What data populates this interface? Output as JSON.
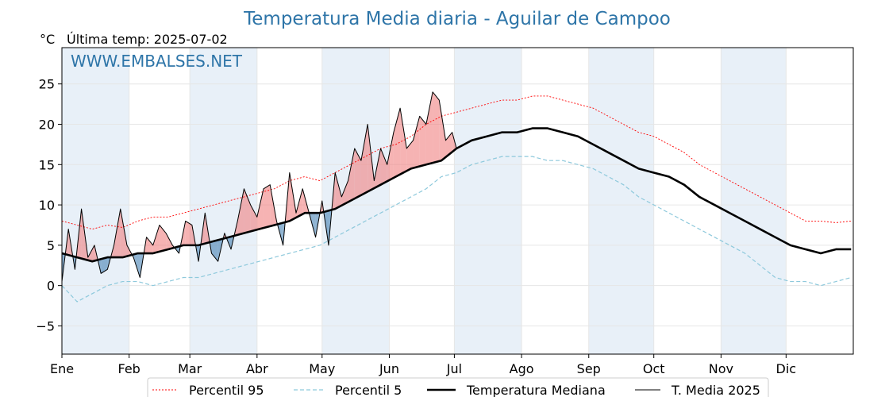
{
  "chart_data": {
    "type": "line",
    "title": "Temperatura Media diaria - Aguilar de Campoo",
    "unit_label": "°C",
    "last_temp_label": "Última temp: 2025-07-02",
    "watermark": "WWW.EMBALSES.NET",
    "ylim": [
      -8.5,
      29.5
    ],
    "yticks": [
      -5,
      0,
      5,
      10,
      15,
      20,
      25
    ],
    "ytick_labels": [
      "−5",
      "0",
      "5",
      "10",
      "15",
      "20",
      "25"
    ],
    "xlim": [
      1,
      366
    ],
    "month_ticks": [
      1,
      32,
      60,
      91,
      121,
      152,
      182,
      213,
      244,
      274,
      305,
      335
    ],
    "month_labels": [
      "Ene",
      "Feb",
      "Mar",
      "Abr",
      "May",
      "Jun",
      "Jul",
      "Ago",
      "Sep",
      "Oct",
      "Nov",
      "Dic"
    ],
    "grid": true,
    "legend_position": "bottom",
    "colors": {
      "p95": "#ff0000",
      "p5": "#8ec9dc",
      "median": "#000000",
      "current": "#000000",
      "above": "#f08080",
      "below": "#4682b4",
      "band": "#e8f0f8",
      "title": "#2e75a8"
    },
    "series": [
      {
        "name": "Percentil 95",
        "style": "dotted",
        "x": [
          1,
          8,
          15,
          22,
          29,
          36,
          43,
          50,
          57,
          64,
          71,
          78,
          85,
          92,
          99,
          106,
          113,
          120,
          127,
          134,
          141,
          148,
          155,
          162,
          169,
          176,
          183,
          190,
          197,
          204,
          211,
          218,
          225,
          232,
          239,
          246,
          253,
          260,
          267,
          274,
          281,
          288,
          295,
          302,
          309,
          316,
          323,
          330,
          337,
          344,
          351,
          358,
          365
        ],
        "values": [
          8,
          7.5,
          7,
          7.5,
          7.2,
          8,
          8.5,
          8.5,
          9,
          9.5,
          10,
          10.5,
          11,
          11.5,
          12,
          13,
          13.5,
          13,
          14,
          15,
          16,
          17,
          17.5,
          18.5,
          20,
          21,
          21.5,
          22,
          22.5,
          23,
          23,
          23.5,
          23.5,
          23,
          22.5,
          22,
          21,
          20,
          19,
          18.5,
          17.5,
          16.5,
          15,
          14,
          13,
          12,
          11,
          10,
          9,
          8,
          8,
          7.8,
          8
        ]
      },
      {
        "name": "Percentil 5",
        "style": "dashed",
        "x": [
          1,
          8,
          15,
          22,
          29,
          36,
          43,
          50,
          57,
          64,
          71,
          78,
          85,
          92,
          99,
          106,
          113,
          120,
          127,
          134,
          141,
          148,
          155,
          162,
          169,
          176,
          183,
          190,
          197,
          204,
          211,
          218,
          225,
          232,
          239,
          246,
          253,
          260,
          267,
          274,
          281,
          288,
          295,
          302,
          309,
          316,
          323,
          330,
          337,
          344,
          351,
          358,
          365
        ],
        "values": [
          0,
          -2,
          -1,
          0,
          0.5,
          0.5,
          0,
          0.5,
          1,
          1,
          1.5,
          2,
          2.5,
          3,
          3.5,
          4,
          4.5,
          5,
          6,
          7,
          8,
          9,
          10,
          11,
          12,
          13.5,
          14,
          15,
          15.5,
          16,
          16,
          16,
          15.5,
          15.5,
          15,
          14.5,
          13.5,
          12.5,
          11,
          10,
          9,
          8,
          7,
          6,
          5,
          4,
          2.5,
          1,
          0.5,
          0.5,
          0,
          0.5,
          1
        ]
      },
      {
        "name": "Temperatura Mediana",
        "style": "solid-thick",
        "x": [
          1,
          8,
          15,
          22,
          29,
          36,
          43,
          50,
          57,
          64,
          71,
          78,
          85,
          92,
          99,
          106,
          113,
          120,
          127,
          134,
          141,
          148,
          155,
          162,
          169,
          176,
          183,
          190,
          197,
          204,
          211,
          218,
          225,
          232,
          239,
          246,
          253,
          260,
          267,
          274,
          281,
          288,
          295,
          302,
          309,
          316,
          323,
          330,
          337,
          344,
          351,
          358,
          365
        ],
        "values": [
          4,
          3.5,
          3,
          3.5,
          3.5,
          4,
          4,
          4.5,
          5,
          5,
          5.5,
          6,
          6.5,
          7,
          7.5,
          8,
          9,
          9,
          9.5,
          10.5,
          11.5,
          12.5,
          13.5,
          14.5,
          15,
          15.5,
          17,
          18,
          18.5,
          19,
          19,
          19.5,
          19.5,
          19,
          18.5,
          17.5,
          16.5,
          15.5,
          14.5,
          14,
          13.5,
          12.5,
          11,
          10,
          9,
          8,
          7,
          6,
          5,
          4.5,
          4,
          4.5,
          4.5
        ]
      },
      {
        "name": "T. Media 2025",
        "style": "solid-thin",
        "x": [
          1,
          4,
          7,
          10,
          13,
          16,
          19,
          22,
          25,
          28,
          31,
          34,
          37,
          40,
          43,
          46,
          49,
          52,
          55,
          58,
          61,
          64,
          67,
          70,
          73,
          76,
          79,
          82,
          85,
          88,
          91,
          94,
          97,
          100,
          103,
          106,
          109,
          112,
          115,
          118,
          121,
          124,
          127,
          130,
          133,
          136,
          139,
          142,
          145,
          148,
          151,
          154,
          157,
          160,
          163,
          166,
          169,
          172,
          175,
          178,
          181,
          183
        ],
        "values": [
          0.5,
          7,
          2,
          9.5,
          3.5,
          5,
          1.5,
          2,
          5,
          9.5,
          5,
          3.5,
          1,
          6,
          5,
          7.5,
          6.5,
          5,
          4,
          8,
          7.5,
          3,
          9,
          4,
          3,
          6.5,
          4.5,
          8,
          12,
          10,
          8.5,
          12,
          12.5,
          8,
          5,
          14,
          9,
          12,
          9,
          6,
          10.5,
          5,
          14,
          11,
          13,
          17,
          15.5,
          20,
          13,
          17,
          15,
          19,
          22,
          17,
          18,
          21,
          20,
          24,
          23,
          18,
          19,
          17
        ]
      }
    ]
  }
}
